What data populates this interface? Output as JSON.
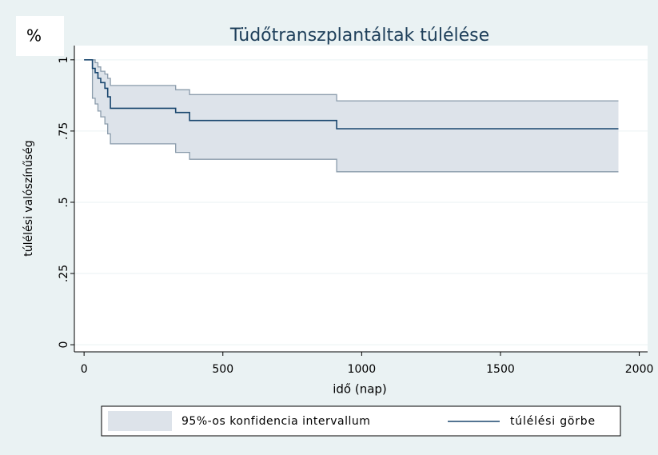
{
  "chart_data": {
    "type": "step",
    "title": "Tüdőtranszplantáltak túlélése",
    "unit_label": "%",
    "x_label": "idő (nap)",
    "y_label": "túlélési valószínűség",
    "x": [
      0,
      30,
      40,
      50,
      60,
      75,
      85,
      95,
      330,
      380,
      910,
      1925
    ],
    "series": [
      {
        "name": "túlélési görbe",
        "color": "#1a476f",
        "values": [
          1,
          0.97,
          0.955,
          0.935,
          0.92,
          0.9,
          0.87,
          0.83,
          0.815,
          0.787,
          0.758,
          0.758
        ]
      }
    ],
    "band": {
      "name": "95%-os konfidencia intervallum",
      "color": "#dde3ea",
      "edge_color": "#8a9bab",
      "upper": [
        1,
        1,
        0.99,
        0.975,
        0.96,
        0.95,
        0.935,
        0.91,
        0.895,
        0.878,
        0.856,
        0.856
      ],
      "lower": [
        1,
        0.865,
        0.845,
        0.82,
        0.8,
        0.775,
        0.74,
        0.705,
        0.675,
        0.651,
        0.607,
        0.607
      ]
    },
    "xlim": [
      -35,
      2030
    ],
    "ylim": [
      -0.025,
      1.05
    ],
    "xticks": [
      0,
      500,
      1000,
      1500,
      2000
    ],
    "yticks": [
      0,
      {
        "value": 0.25,
        "label": ".25"
      },
      {
        "value": 0.5,
        "label": ".5"
      },
      {
        "value": 0.75,
        "label": ".75"
      },
      1
    ],
    "grid": true
  }
}
